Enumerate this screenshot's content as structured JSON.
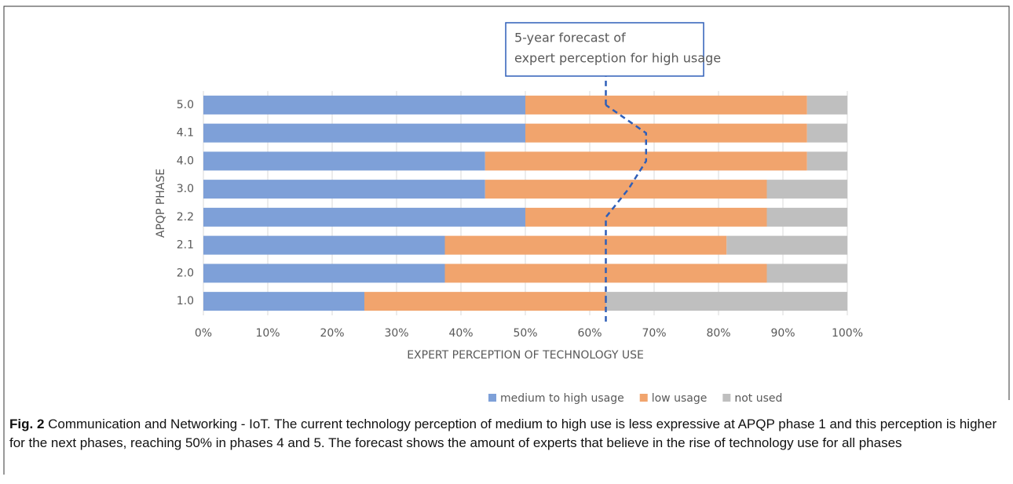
{
  "chart_data": {
    "type": "bar",
    "orientation": "horizontal",
    "stacked": true,
    "categories": [
      "1.0",
      "2.0",
      "2.1",
      "2.2",
      "3.0",
      "4.0",
      "4.1",
      "5.0"
    ],
    "series": [
      {
        "name": "medium to high usage",
        "color": "#7ea0d8",
        "values": [
          25,
          37.5,
          37.5,
          50,
          43.75,
          43.75,
          50,
          50
        ]
      },
      {
        "name": "low usage",
        "color": "#f1a46d",
        "values": [
          37.5,
          50,
          43.75,
          37.5,
          43.75,
          50,
          43.75,
          43.75
        ]
      },
      {
        "name": "not used",
        "color": "#bfbfbf",
        "values": [
          37.5,
          12.5,
          18.75,
          12.5,
          12.5,
          6.25,
          6.25,
          6.25
        ]
      }
    ],
    "forecast": {
      "color": "#2f5fb8",
      "values": [
        62.5,
        62.5,
        62.5,
        62.5,
        66,
        68.75,
        68.75,
        62.5
      ]
    },
    "annotation": [
      "5-year forecast of",
      "expert perception for high usage"
    ],
    "xlabel": "EXPERT PERCEPTION OF TECHNOLOGY USE",
    "ylabel": "APQP PHASE",
    "xlim": [
      0,
      100
    ],
    "xticks": [
      {
        "value": 0,
        "label": "0%"
      },
      {
        "value": 10,
        "label": "10%"
      },
      {
        "value": 20,
        "label": "20%"
      },
      {
        "value": 30,
        "label": "30%"
      },
      {
        "value": 40,
        "label": "40%"
      },
      {
        "value": 50,
        "label": "50%"
      },
      {
        "value": 60,
        "label": "60%"
      },
      {
        "value": 70,
        "label": "70%"
      },
      {
        "value": 80,
        "label": "80%"
      },
      {
        "value": 90,
        "label": "90%"
      },
      {
        "value": 100,
        "label": "100%"
      }
    ],
    "grid": true,
    "legend": "bottom"
  },
  "caption": {
    "label": "Fig. 2",
    "text": " Communication and Networking - IoT. The current technology perception of medium to high use is less expressive at APQP phase 1 and this perception is higher for the next phases, reaching 50% in phases 4 and 5. The forecast shows the amount of experts that believe in the rise of technology use for all phases"
  }
}
